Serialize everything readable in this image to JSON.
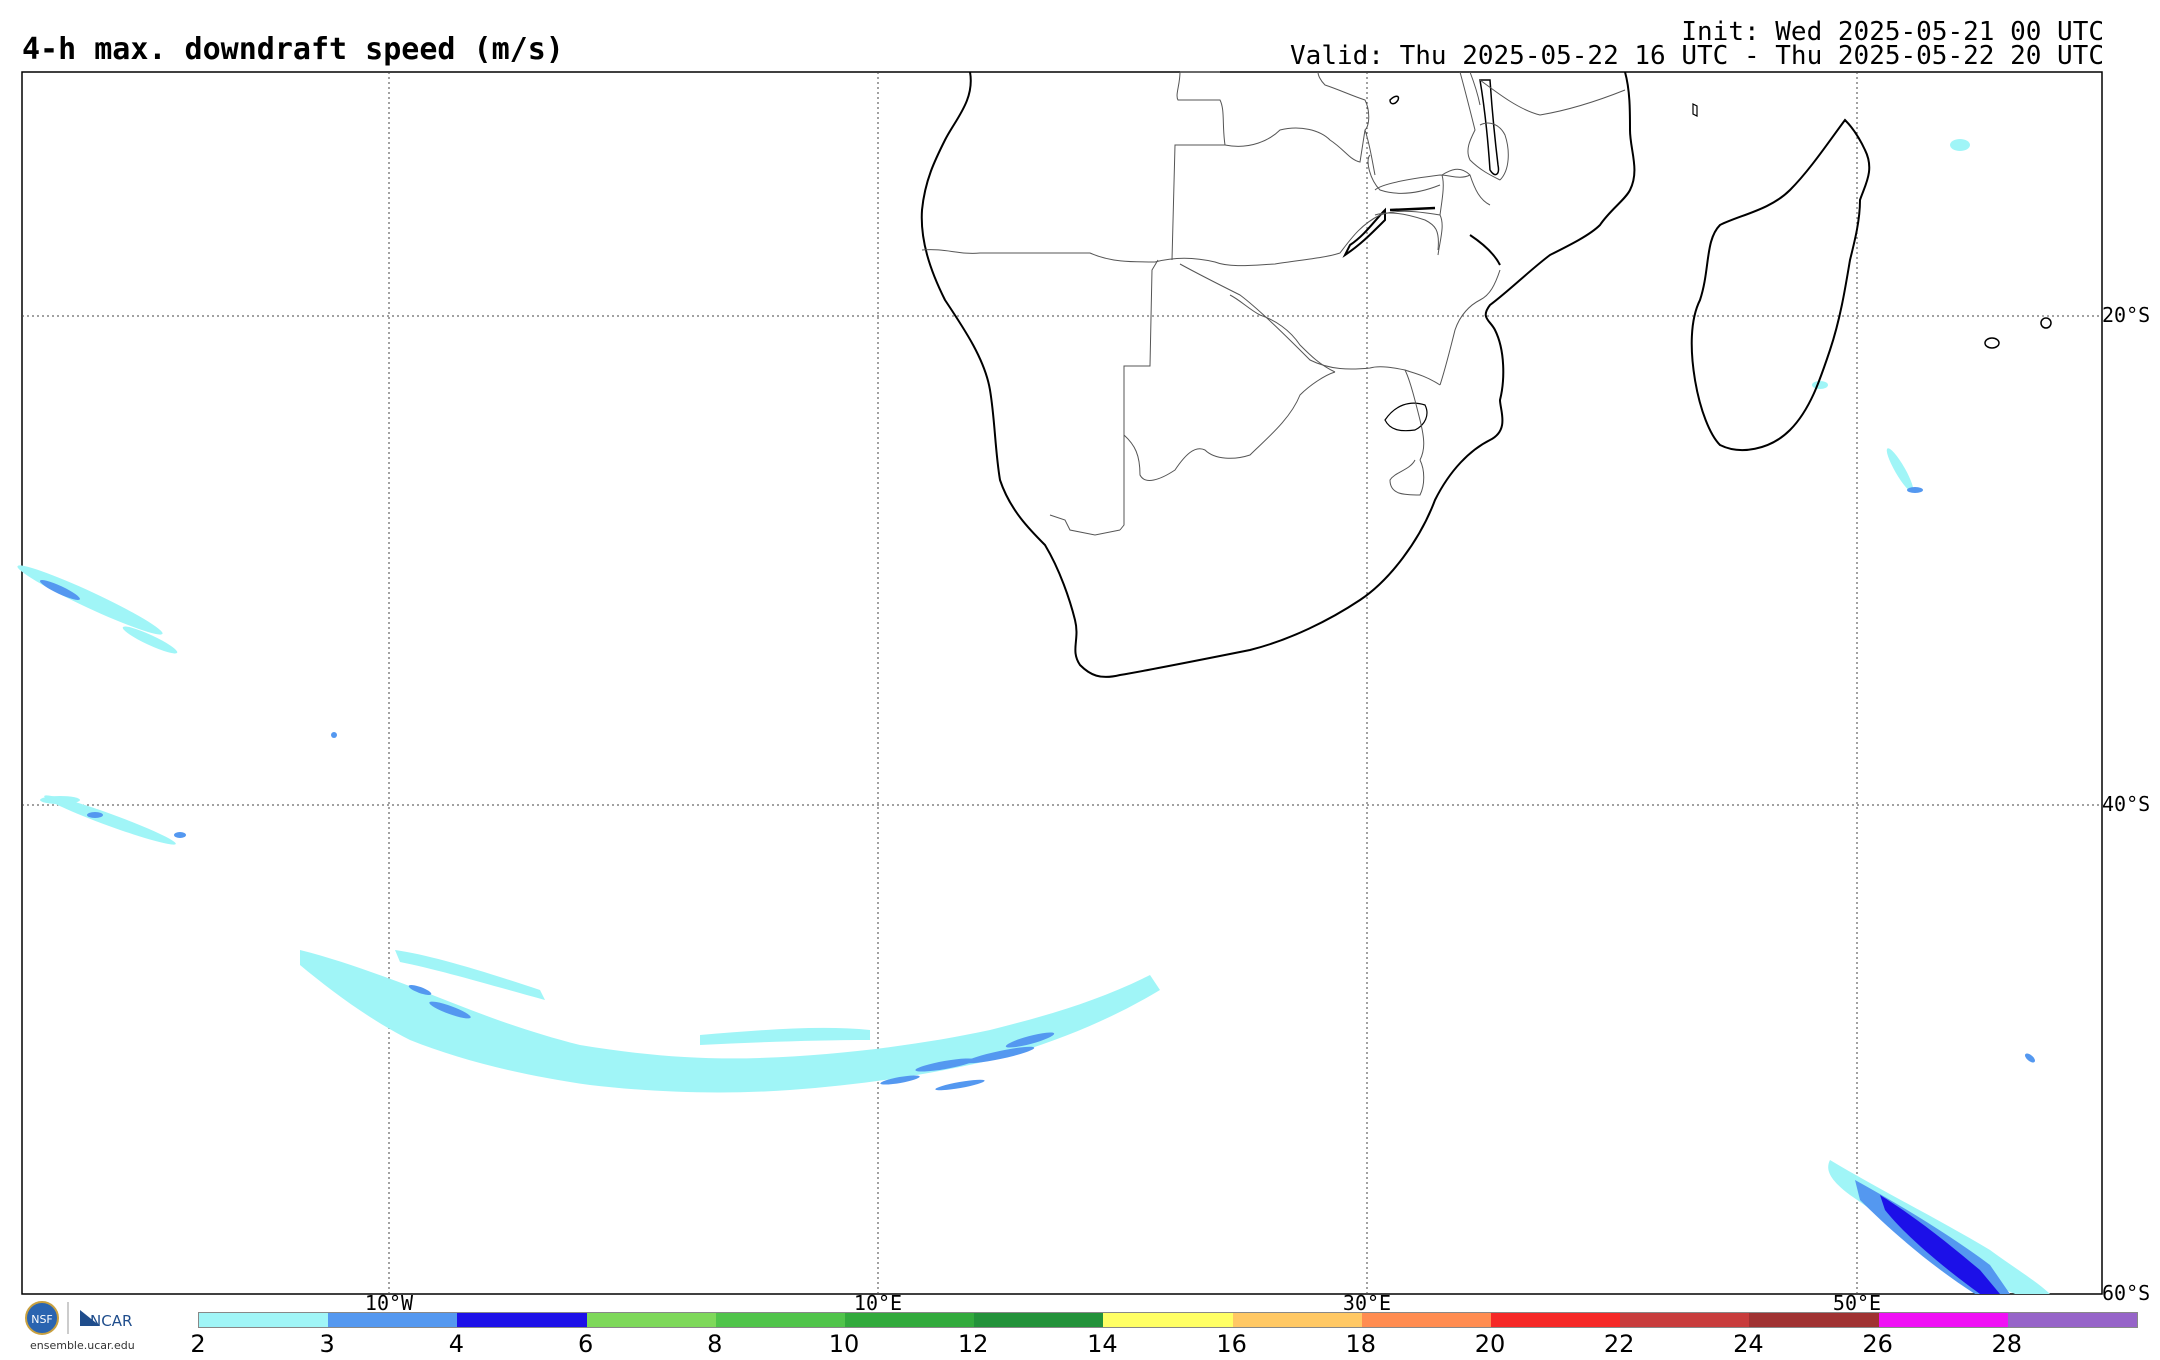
{
  "header": {
    "title": "4-h max. downdraft speed (m/s)",
    "init": "Init: Wed 2025-05-21 00 UTC",
    "valid": "Valid: Thu 2025-05-22 16 UTC - Thu 2025-05-22 20 UTC"
  },
  "map": {
    "lon_labels": [
      "10°W",
      "10°E",
      "30°E",
      "50°E"
    ],
    "lat_labels": [
      "20°S",
      "40°S",
      "60°S"
    ]
  },
  "colorbar": {
    "ticks": [
      "2",
      "3",
      "4",
      "6",
      "8",
      "10",
      "12",
      "14",
      "16",
      "18",
      "20",
      "22",
      "24",
      "26",
      "28"
    ],
    "colors": [
      "#a0f5f7",
      "#5498f0",
      "#1c10e8",
      "#7ed85a",
      "#50c44a",
      "#32aa3c",
      "#23923a",
      "#ffff64",
      "#ffc864",
      "#ff8c50",
      "#f52826",
      "#c83c3c",
      "#a03232",
      "#f00ff5",
      "#9664c8"
    ]
  },
  "logos": {
    "nsf": "NSF",
    "ncar": "NCAR",
    "url": "ensemble.ucar.edu"
  },
  "colors": {
    "cyan": "#a0f5f7",
    "blue": "#5498f0",
    "darkblue": "#1c10e8"
  }
}
